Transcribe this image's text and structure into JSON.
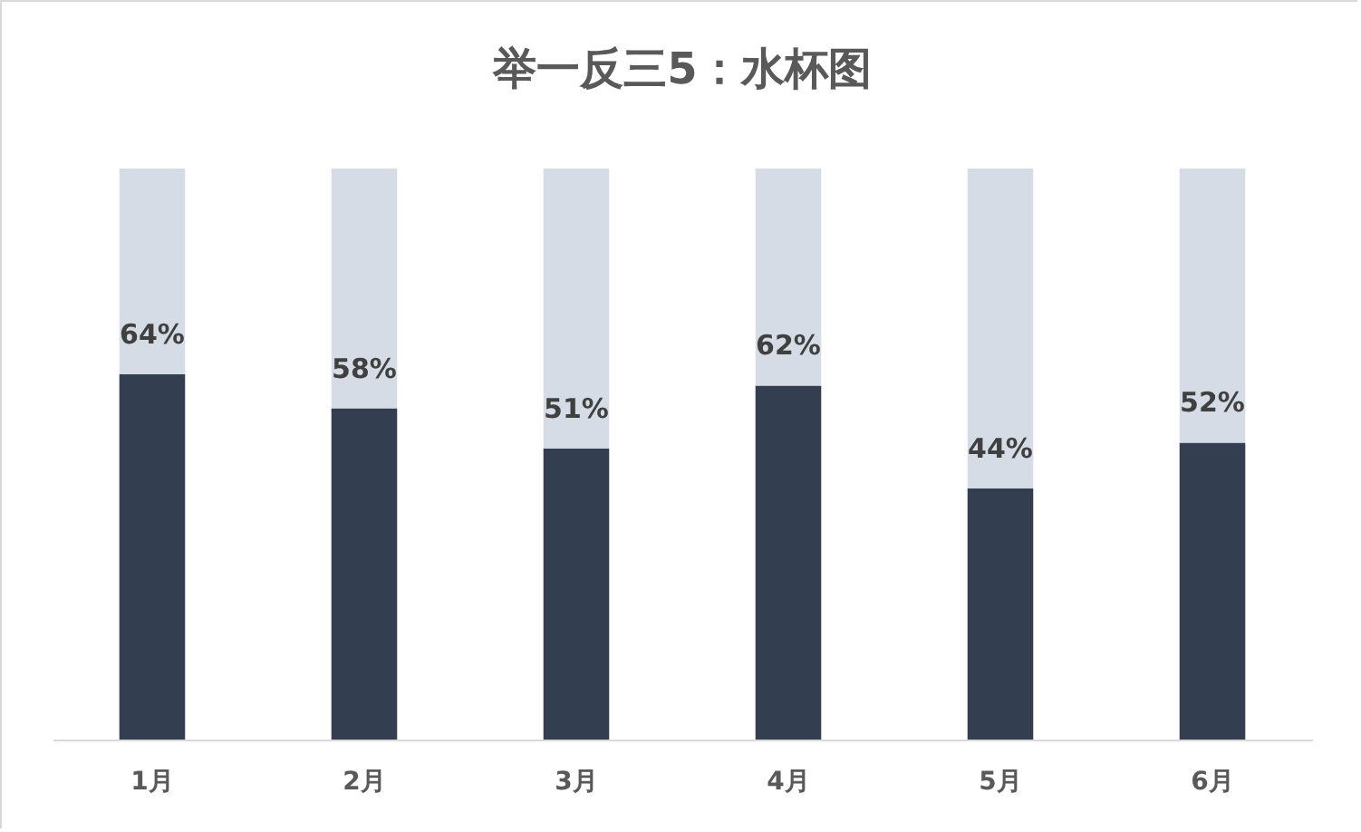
{
  "chart_data": {
    "type": "bar",
    "title": "举一反三5：水杯图",
    "categories": [
      "1月",
      "2月",
      "3月",
      "4月",
      "5月",
      "6月"
    ],
    "stacked": true,
    "series": [
      {
        "color": "#333f50",
        "values": [
          64,
          58,
          51,
          62,
          44,
          52
        ],
        "value_labels": [
          "64%",
          "58%",
          "51%",
          "62%",
          "44%",
          "52%"
        ]
      },
      {
        "color": "#d6dce5",
        "values": [
          36,
          42,
          49,
          38,
          56,
          48
        ]
      }
    ]
  }
}
